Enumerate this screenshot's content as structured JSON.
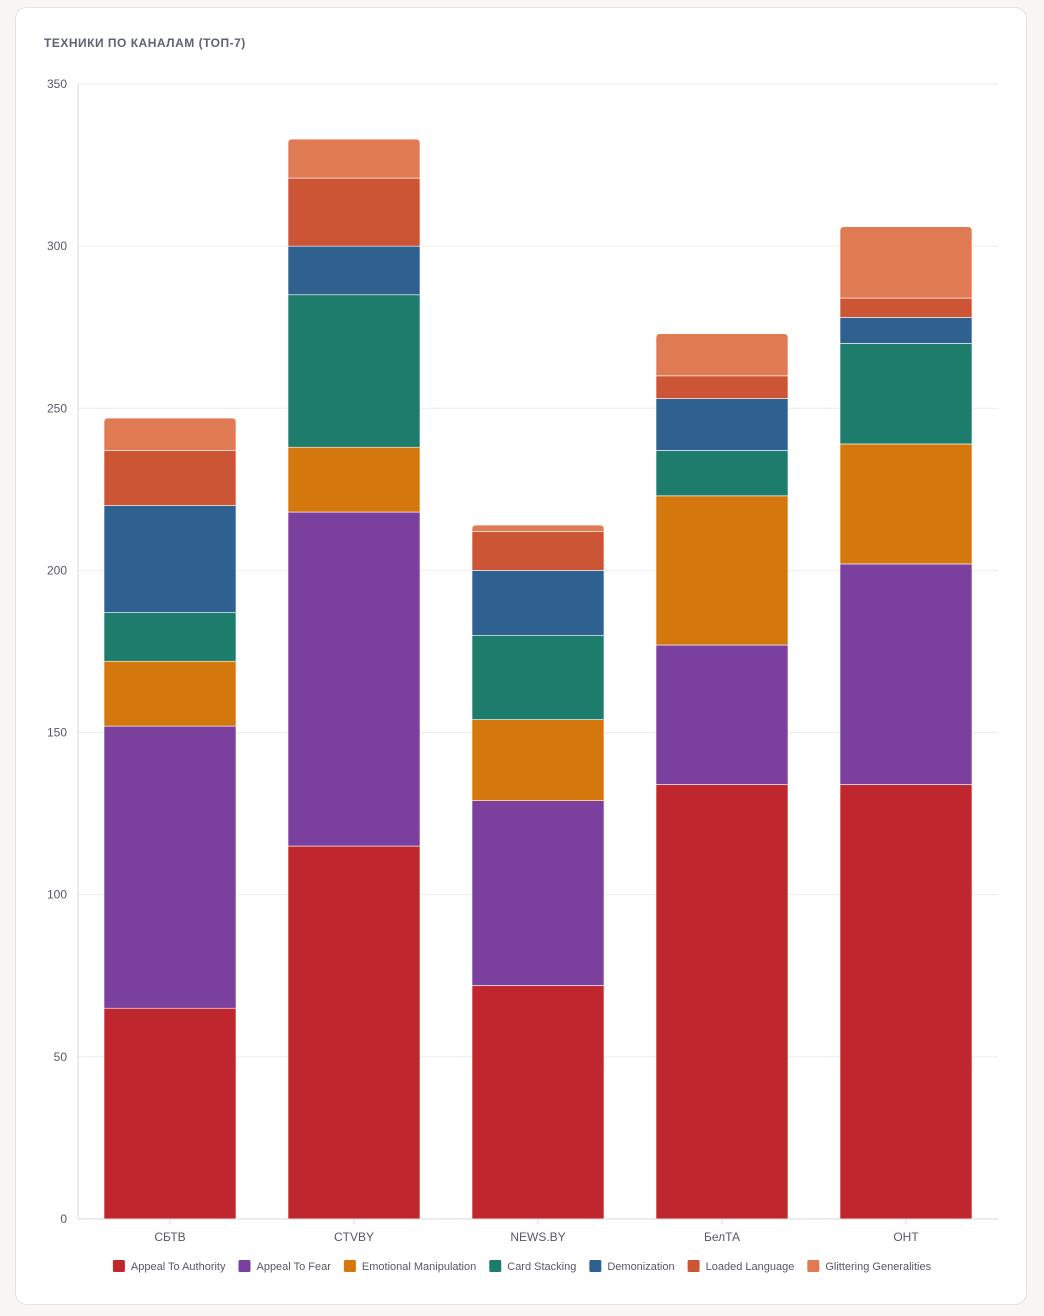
{
  "card": {
    "title": "ТЕХНИКИ ПО КАНАЛАМ (ТОП-7)"
  },
  "chart_data": {
    "type": "bar",
    "stacked": true,
    "categories": [
      "СБТВ",
      "CTVBY",
      "NEWS.BY",
      "БелТА",
      "ОНТ"
    ],
    "ylim": [
      0,
      350
    ],
    "yticks": [
      0,
      50,
      100,
      150,
      200,
      250,
      300,
      350
    ],
    "grid": true,
    "legend_position": "bottom",
    "series": [
      {
        "name": "Appeal To Authority",
        "color": "#c0262e",
        "values": [
          65,
          115,
          72,
          134,
          134
        ]
      },
      {
        "name": "Appeal To Fear",
        "color": "#7b3f9e",
        "values": [
          87,
          103,
          57,
          43,
          68
        ]
      },
      {
        "name": "Emotional Manipulation",
        "color": "#d4780e",
        "values": [
          20,
          20,
          25,
          46,
          37
        ]
      },
      {
        "name": "Card Stacking",
        "color": "#1e7c6c",
        "values": [
          15,
          47,
          26,
          14,
          31
        ]
      },
      {
        "name": "Demonization",
        "color": "#2e6090",
        "values": [
          33,
          15,
          20,
          16,
          8
        ]
      },
      {
        "name": "Loaded Language",
        "color": "#cb5534",
        "values": [
          17,
          21,
          12,
          7,
          6
        ]
      },
      {
        "name": "Glittering Generalities",
        "color": "#e07a52",
        "values": [
          10,
          12,
          2,
          13,
          22
        ]
      }
    ]
  }
}
